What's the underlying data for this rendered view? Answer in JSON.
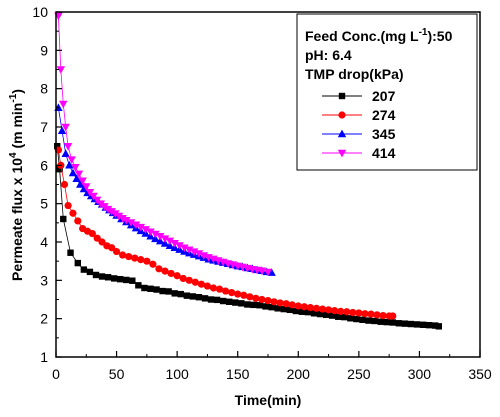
{
  "chart_data": {
    "type": "line",
    "xlabel": "Time(min)",
    "ylabel_main": "Permeate flux x 10",
    "ylabel_sup": "4",
    "ylabel_unit_open": " (m min",
    "ylabel_unit_sup": "-1",
    "ylabel_unit_close": ")",
    "xlim": [
      0,
      350
    ],
    "ylim": [
      1,
      10
    ],
    "x_ticks": [
      0,
      50,
      100,
      150,
      200,
      250,
      300,
      350
    ],
    "y_ticks": [
      1,
      2,
      3,
      4,
      5,
      6,
      7,
      8,
      9,
      10
    ],
    "grid": false,
    "legend": {
      "position": "top-right",
      "line1_main": "Feed Conc.(mg L",
      "line1_sup": "-1",
      "line1_end": "):50",
      "line2": "pH: 6.4",
      "title": "TMP drop(kPa)"
    },
    "series": [
      {
        "name": "207",
        "color": "#000000",
        "marker": "square",
        "x": [
          1,
          3,
          6,
          12,
          18,
          23,
          28,
          33,
          38,
          43,
          48,
          53,
          58,
          63,
          68,
          73,
          78,
          83,
          88,
          93,
          98,
          103,
          108,
          113,
          118,
          123,
          128,
          133,
          138,
          143,
          148,
          153,
          158,
          163,
          168,
          173,
          178,
          183,
          188,
          193,
          198,
          203,
          208,
          213,
          218,
          223,
          228,
          233,
          238,
          243,
          248,
          253,
          258,
          263,
          268,
          273,
          278,
          283,
          288,
          293,
          298,
          303,
          308,
          313,
          316
        ],
        "y": [
          6.5,
          5.9,
          4.6,
          3.72,
          3.45,
          3.28,
          3.22,
          3.14,
          3.1,
          3.08,
          3.05,
          3.03,
          3.01,
          2.99,
          2.87,
          2.8,
          2.78,
          2.76,
          2.72,
          2.71,
          2.66,
          2.64,
          2.6,
          2.58,
          2.56,
          2.53,
          2.5,
          2.49,
          2.46,
          2.44,
          2.42,
          2.4,
          2.37,
          2.36,
          2.35,
          2.32,
          2.3,
          2.27,
          2.25,
          2.23,
          2.2,
          2.18,
          2.17,
          2.14,
          2.12,
          2.1,
          2.08,
          2.05,
          2.04,
          2.01,
          1.99,
          1.97,
          1.95,
          1.94,
          1.92,
          1.91,
          1.9,
          1.88,
          1.87,
          1.86,
          1.85,
          1.84,
          1.83,
          1.82,
          1.8
        ]
      },
      {
        "name": "274",
        "color": "#ff0000",
        "marker": "circle",
        "x": [
          2,
          4,
          7,
          10,
          14,
          18,
          22,
          26,
          30,
          34,
          38,
          42,
          46,
          50,
          55,
          60,
          65,
          70,
          75,
          80,
          85,
          90,
          95,
          100,
          105,
          110,
          115,
          120,
          125,
          130,
          135,
          140,
          145,
          150,
          155,
          160,
          165,
          170,
          175,
          180,
          185,
          190,
          195,
          200,
          205,
          210,
          215,
          220,
          225,
          230,
          235,
          240,
          245,
          250,
          255,
          260,
          265,
          270,
          275,
          278
        ],
        "y": [
          6.4,
          6.0,
          5.5,
          4.95,
          4.75,
          4.55,
          4.35,
          4.28,
          4.22,
          4.1,
          4.0,
          3.9,
          3.85,
          3.75,
          3.66,
          3.62,
          3.58,
          3.54,
          3.5,
          3.42,
          3.3,
          3.24,
          3.18,
          3.12,
          3.05,
          3.0,
          2.95,
          2.9,
          2.85,
          2.8,
          2.77,
          2.72,
          2.68,
          2.64,
          2.61,
          2.57,
          2.53,
          2.5,
          2.47,
          2.44,
          2.41,
          2.39,
          2.36,
          2.33,
          2.31,
          2.29,
          2.27,
          2.25,
          2.23,
          2.21,
          2.19,
          2.18,
          2.16,
          2.15,
          2.13,
          2.12,
          2.1,
          2.08,
          2.07,
          2.07
        ]
      },
      {
        "name": "345",
        "color": "#0000ff",
        "marker": "triangle-up",
        "x": [
          2,
          5,
          8,
          11,
          14,
          17,
          20,
          23,
          26,
          29,
          32,
          35,
          38,
          41,
          44,
          47,
          50,
          54,
          58,
          62,
          66,
          70,
          74,
          78,
          82,
          86,
          90,
          94,
          98,
          102,
          106,
          110,
          114,
          118,
          122,
          126,
          130,
          134,
          138,
          142,
          146,
          150,
          154,
          158,
          162,
          166,
          170,
          174,
          178
        ],
        "y": [
          7.5,
          6.9,
          6.3,
          6.0,
          5.8,
          5.65,
          5.5,
          5.38,
          5.28,
          5.2,
          5.12,
          5.05,
          4.98,
          4.9,
          4.83,
          4.76,
          4.69,
          4.6,
          4.52,
          4.44,
          4.36,
          4.29,
          4.22,
          4.15,
          4.08,
          4.02,
          3.96,
          3.9,
          3.85,
          3.8,
          3.75,
          3.71,
          3.67,
          3.63,
          3.59,
          3.55,
          3.52,
          3.49,
          3.46,
          3.43,
          3.4,
          3.37,
          3.35,
          3.32,
          3.3,
          3.27,
          3.25,
          3.22,
          3.2
        ]
      },
      {
        "name": "414",
        "color": "#ff00ff",
        "marker": "triangle-down",
        "x": [
          2,
          4,
          6,
          8,
          10,
          13,
          16,
          19,
          22,
          25,
          28,
          31,
          34,
          37,
          40,
          43,
          46,
          49,
          52,
          55,
          58,
          62,
          66,
          70,
          74,
          78,
          82,
          86,
          90,
          94,
          98,
          102,
          106,
          110,
          114,
          118,
          122,
          126,
          130,
          134,
          138,
          142,
          146,
          150,
          154,
          158,
          162,
          166,
          170,
          175
        ],
        "y": [
          9.9,
          8.5,
          7.6,
          7.0,
          6.5,
          6.15,
          5.95,
          5.78,
          5.6,
          5.45,
          5.3,
          5.2,
          5.1,
          5.0,
          4.93,
          4.86,
          4.8,
          4.74,
          4.68,
          4.62,
          4.57,
          4.51,
          4.45,
          4.39,
          4.33,
          4.27,
          4.21,
          4.15,
          4.09,
          4.03,
          3.97,
          3.91,
          3.85,
          3.8,
          3.75,
          3.7,
          3.65,
          3.6,
          3.56,
          3.52,
          3.48,
          3.44,
          3.41,
          3.38,
          3.35,
          3.32,
          3.29,
          3.27,
          3.25,
          3.22
        ]
      }
    ]
  }
}
